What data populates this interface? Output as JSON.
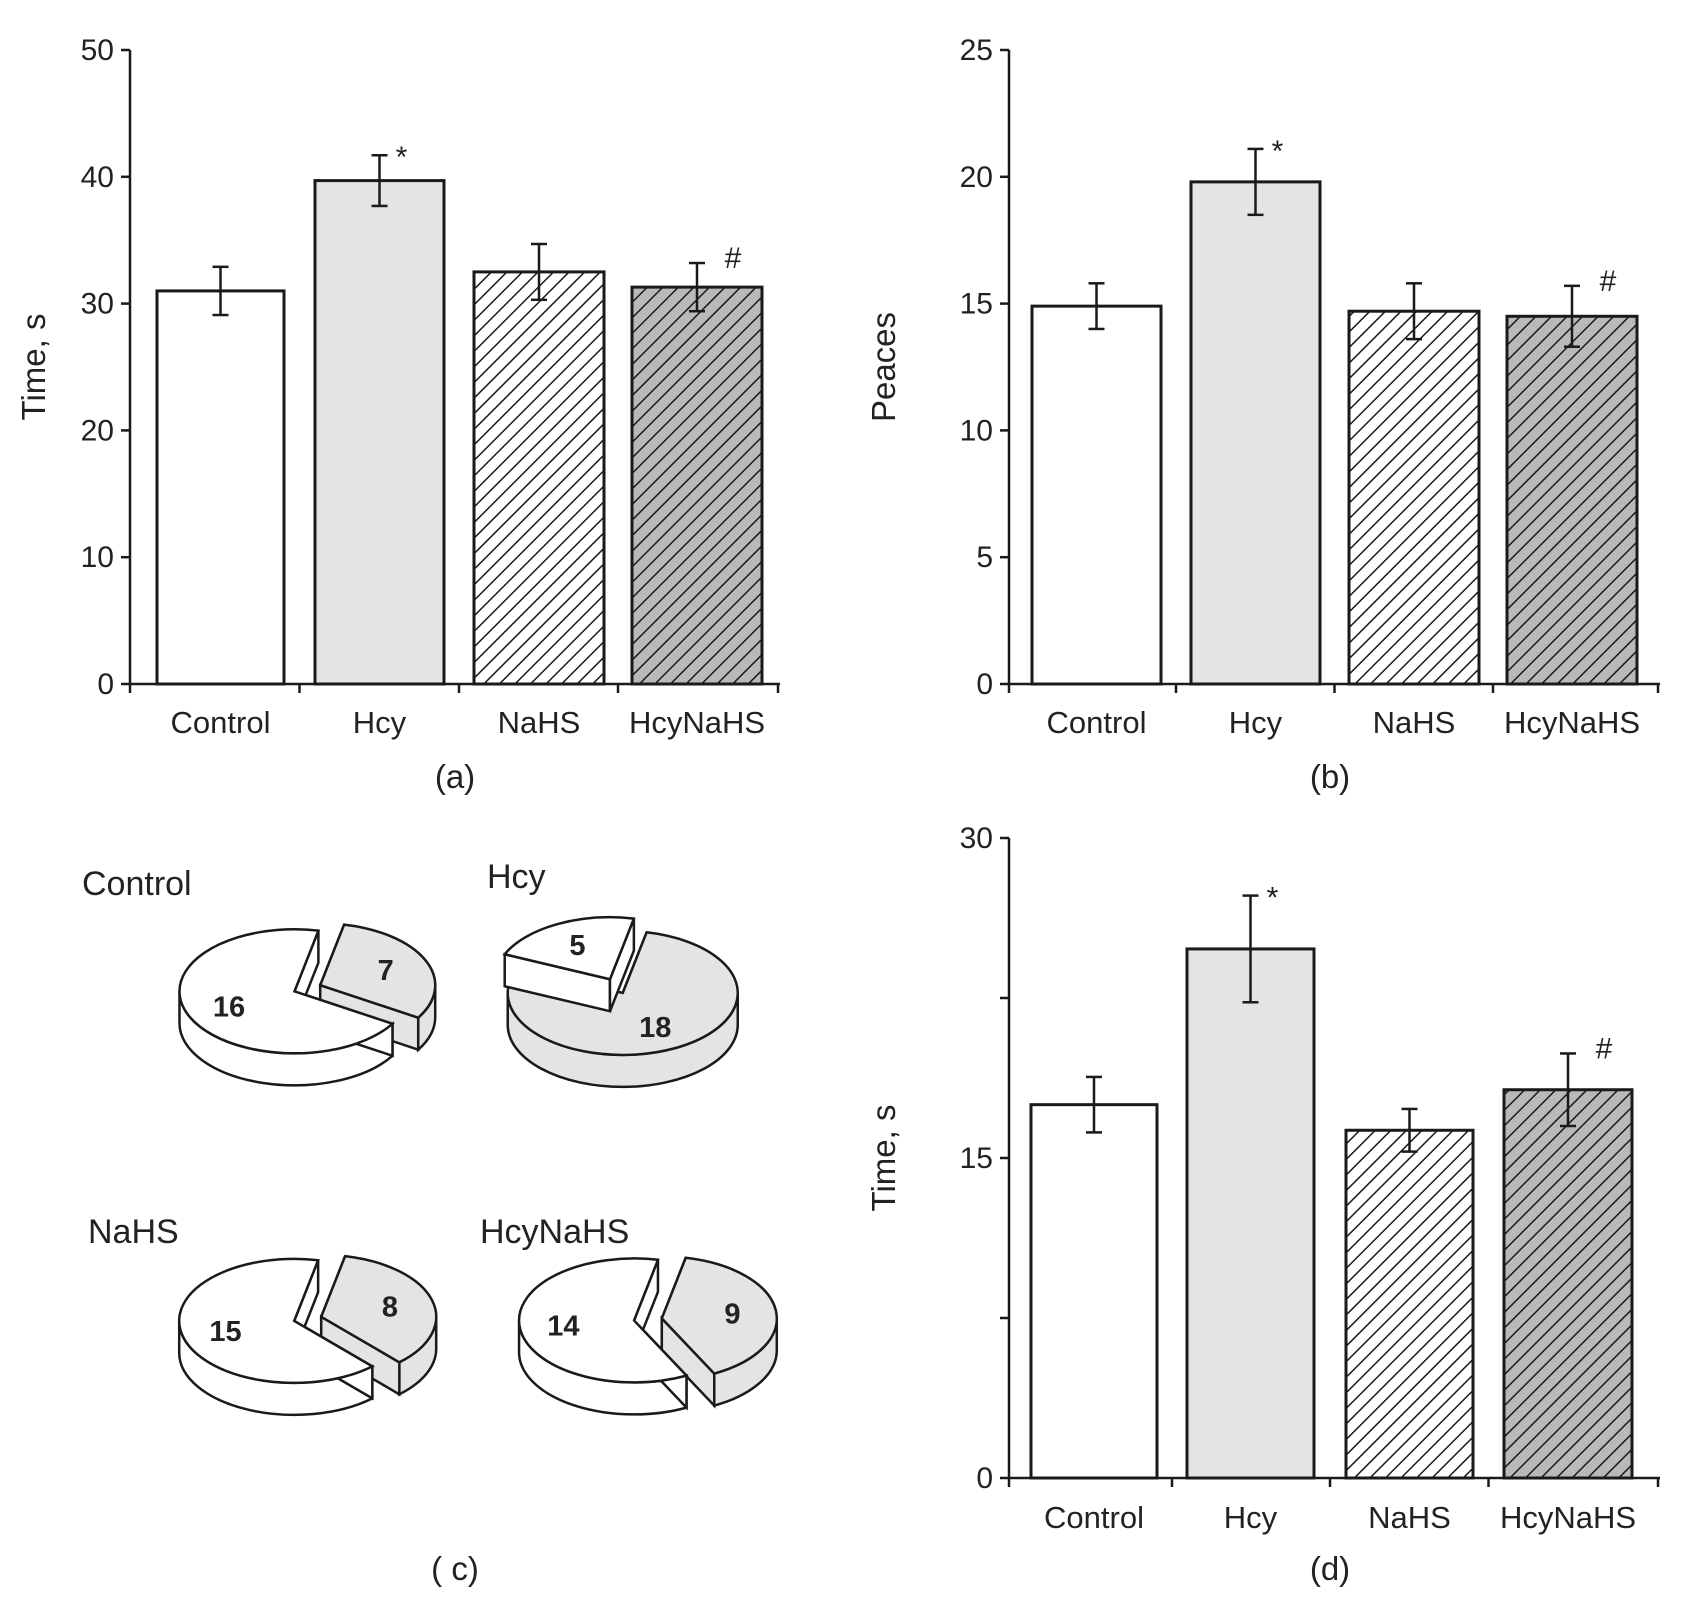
{
  "palette": {
    "control": "#ffffff",
    "hcy": "#e4e4e4",
    "nahs": "#ffffff",
    "hcynahs": "#b9b9b9",
    "outline": "#1a1a1a"
  },
  "chart_data": [
    {
      "type": "bar",
      "panel": "(a)",
      "ylabel": "Time, s",
      "xlabel": "",
      "ylim": [
        0,
        50
      ],
      "yticks": [
        0,
        10,
        20,
        30,
        40,
        50
      ],
      "categories": [
        "Control",
        "Hcy",
        "NaHS",
        "HcyNaHS"
      ],
      "values": [
        31,
        39.7,
        32.5,
        31.3
      ],
      "errors": [
        1.9,
        2.0,
        2.2,
        1.9
      ],
      "fills": [
        "control",
        "hcy",
        "nahs",
        "hcynahs"
      ],
      "patterns": [
        "none",
        "none",
        "hatch",
        "hatch"
      ],
      "markers": [
        "",
        "*",
        "",
        "#"
      ]
    },
    {
      "type": "bar",
      "panel": "(b)",
      "ylabel": "Peaces",
      "xlabel": "",
      "ylim": [
        0,
        25
      ],
      "yticks": [
        0,
        5,
        10,
        15,
        20,
        25
      ],
      "categories": [
        "Control",
        "Hcy",
        "NaHS",
        "HcyNaHS"
      ],
      "values": [
        14.9,
        19.8,
        14.7,
        14.5
      ],
      "errors": [
        0.9,
        1.3,
        1.1,
        1.2
      ],
      "fills": [
        "control",
        "hcy",
        "nahs",
        "hcynahs"
      ],
      "patterns": [
        "none",
        "none",
        "hatch",
        "hatch"
      ],
      "markers": [
        "",
        "*",
        "",
        "#"
      ]
    },
    {
      "type": "pie",
      "panel": "( c)",
      "pies": [
        {
          "title": "Control",
          "values": [
            16,
            7
          ],
          "fills": [
            "control",
            "hcy"
          ]
        },
        {
          "title": "Hcy",
          "values": [
            5,
            18
          ],
          "fills": [
            "control",
            "hcy"
          ]
        },
        {
          "title": "NaHS",
          "values": [
            15,
            8
          ],
          "fills": [
            "control",
            "hcy"
          ]
        },
        {
          "title": "HcyNaHS",
          "values": [
            14,
            9
          ],
          "fills": [
            "control",
            "hcy"
          ]
        }
      ]
    },
    {
      "type": "bar",
      "panel": "(d)",
      "ylabel": "Time, s",
      "xlabel": "",
      "ylim": [
        0,
        30
      ],
      "yticks": [
        0,
        15,
        30
      ],
      "minor_yticks": [
        7.5,
        22.5
      ],
      "categories": [
        "Control",
        "Hcy",
        "NaHS",
        "HcyNaHS"
      ],
      "values": [
        17.5,
        24.8,
        16.3,
        18.2
      ],
      "errors": [
        1.3,
        2.5,
        1.0,
        1.7
      ],
      "fills": [
        "control",
        "hcy",
        "nahs",
        "hcynahs"
      ],
      "patterns": [
        "none",
        "none",
        "hatch",
        "hatch"
      ],
      "markers": [
        "",
        "*",
        "",
        "#"
      ]
    }
  ]
}
